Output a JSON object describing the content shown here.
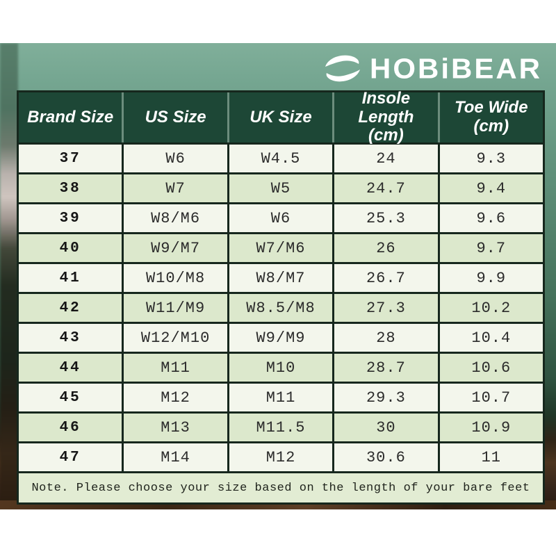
{
  "brand": {
    "name": "HOBiBEAR",
    "icon": "swoosh-icon"
  },
  "chart_data": {
    "type": "table",
    "columns": [
      "Brand Size",
      "US Size",
      "UK Size",
      "Insole Length (cm)",
      "Toe Wide (cm)"
    ],
    "rows": [
      [
        "37",
        "W6",
        "W4.5",
        "24",
        "9.3"
      ],
      [
        "38",
        "W7",
        "W5",
        "24.7",
        "9.4"
      ],
      [
        "39",
        "W8/M6",
        "W6",
        "25.3",
        "9.6"
      ],
      [
        "40",
        "W9/M7",
        "W7/M6",
        "26",
        "9.7"
      ],
      [
        "41",
        "W10/M8",
        "W8/M7",
        "26.7",
        "9.9"
      ],
      [
        "42",
        "W11/M9",
        "W8.5/M8",
        "27.3",
        "10.2"
      ],
      [
        "43",
        "W12/M10",
        "W9/M9",
        "28",
        "10.4"
      ],
      [
        "44",
        "M11",
        "M10",
        "28.7",
        "10.6"
      ],
      [
        "45",
        "M12",
        "M11",
        "29.3",
        "10.7"
      ],
      [
        "46",
        "M13",
        "M11.5",
        "30",
        "10.9"
      ],
      [
        "47",
        "M14",
        "M12",
        "30.6",
        "11"
      ]
    ]
  },
  "note": {
    "text": "Note. Please choose your size based on the length of your bare feet"
  },
  "colors": {
    "header_bg": "#1d4736",
    "header_separator": "#6c8d7d",
    "table_frame": "#16271d",
    "row_light": "#f3f6ec",
    "row_green": "#dce8cc",
    "note_bg": "#e2ecd3",
    "wall_teal": "#75a691",
    "floor_brown": "#3a2a1a",
    "logo_color": "#ffffff"
  }
}
